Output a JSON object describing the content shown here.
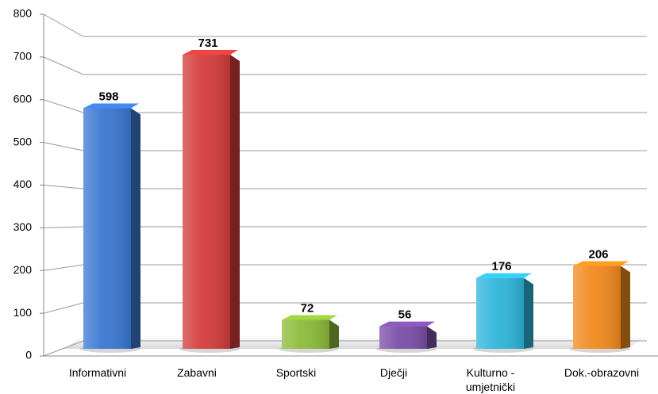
{
  "chart_data": {
    "type": "bar",
    "categories": [
      "Informativni",
      "Zabavni",
      "Sportski",
      "Dječji",
      "Kulturno - umjetnički",
      "Dok.-obrazovni"
    ],
    "values": [
      598,
      731,
      72,
      56,
      176,
      206
    ],
    "colors": [
      "#3a78d2",
      "#d43c3c",
      "#8cbc3a",
      "#7b4ea8",
      "#2fb6da",
      "#f28a1e"
    ],
    "ylim": [
      0,
      800
    ],
    "yticks": [
      0,
      100,
      200,
      300,
      400,
      500,
      600,
      700,
      800
    ],
    "grid": true
  }
}
